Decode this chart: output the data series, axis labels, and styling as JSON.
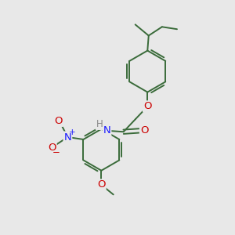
{
  "bg_color": "#e8e8e8",
  "bond_color": "#3a6b3a",
  "bond_width": 1.4,
  "atom_colors": {
    "O": "#cc0000",
    "N": "#1a1aff",
    "H": "#888888",
    "C": "#3a6b3a"
  },
  "font_size": 8.5,
  "fig_size": [
    3.0,
    3.0
  ],
  "xlim": [
    0,
    10
  ],
  "ylim": [
    0,
    10
  ]
}
